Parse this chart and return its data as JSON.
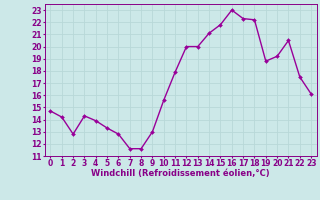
{
  "x": [
    0,
    1,
    2,
    3,
    4,
    5,
    6,
    7,
    8,
    9,
    10,
    11,
    12,
    13,
    14,
    15,
    16,
    17,
    18,
    19,
    20,
    21,
    22,
    23
  ],
  "y": [
    14.7,
    14.2,
    12.8,
    14.3,
    13.9,
    13.3,
    12.8,
    11.6,
    11.6,
    13.0,
    15.6,
    17.9,
    20.0,
    20.0,
    21.1,
    21.8,
    23.0,
    22.3,
    22.2,
    18.8,
    19.2,
    20.5,
    17.5,
    16.1
  ],
  "line_color": "#990099",
  "marker": "D",
  "marker_size": 2.0,
  "line_width": 1.0,
  "xlabel": "Windchill (Refroidissement éolien,°C)",
  "xlabel_fontsize": 6.0,
  "ylim": [
    11,
    23.5
  ],
  "xlim": [
    -0.5,
    23.5
  ],
  "yticks": [
    11,
    12,
    13,
    14,
    15,
    16,
    17,
    18,
    19,
    20,
    21,
    22,
    23
  ],
  "xticks": [
    0,
    1,
    2,
    3,
    4,
    5,
    6,
    7,
    8,
    9,
    10,
    11,
    12,
    13,
    14,
    15,
    16,
    17,
    18,
    19,
    20,
    21,
    22,
    23
  ],
  "grid_color": "#b8d8d8",
  "bg_color": "#cce8e8",
  "tick_fontsize": 5.5,
  "tick_color": "#880088",
  "axis_color": "#880088"
}
